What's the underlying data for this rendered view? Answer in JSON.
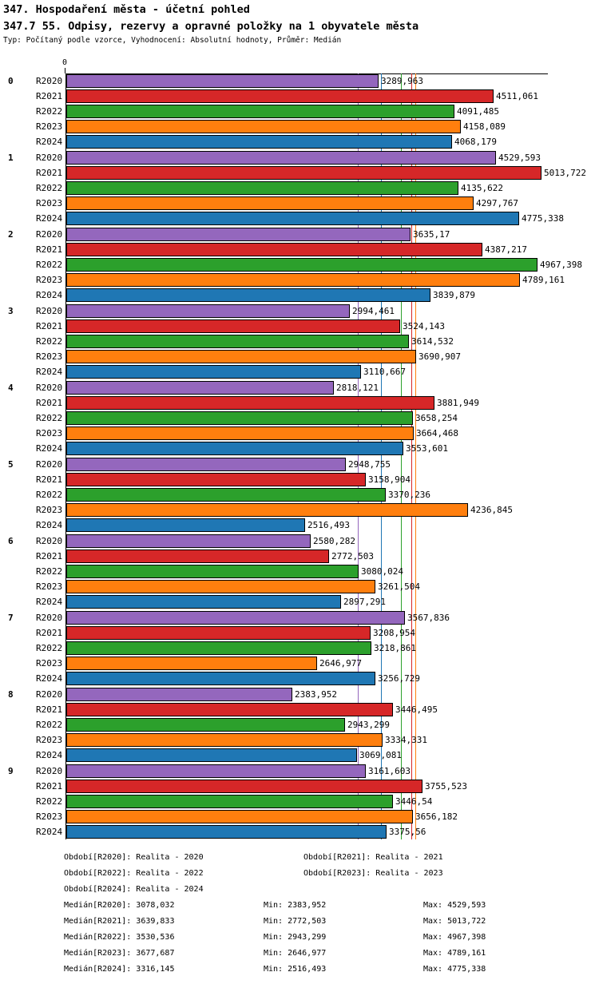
{
  "header": {
    "title1": "347. Hospodaření města - účetní pohled",
    "title2": "347.7 55. Odpisy, rezervy a opravné položky na 1 obyvatele města",
    "meta": "Typ: Počítaný podle vzorce, Vyhodnocení: Absolutní hodnoty, Průměr: Medián"
  },
  "chart_data": {
    "type": "bar",
    "orientation": "horizontal",
    "title": "347.7 55. Odpisy, rezervy a opravné položky na 1 obyvatele města",
    "series": [
      "R2020",
      "R2021",
      "R2022",
      "R2023",
      "R2024"
    ],
    "series_colors": [
      "#9467bd",
      "#d62728",
      "#2ca02c",
      "#ff7f0e",
      "#1f77b4"
    ],
    "categories": [
      "0",
      "1",
      "2",
      "3",
      "4",
      "5",
      "6",
      "7",
      "8",
      "9"
    ],
    "values_display": [
      [
        "3289,963",
        "4511,061",
        "4091,485",
        "4158,089",
        "4068,179"
      ],
      [
        "4529,593",
        "5013,722",
        "4135,622",
        "4297,767",
        "4775,338"
      ],
      [
        "3635,17",
        "4387,217",
        "4967,398",
        "4789,161",
        "3839,879"
      ],
      [
        "2994,461",
        "3524,143",
        "3614,532",
        "3690,907",
        "3110,667"
      ],
      [
        "2818,121",
        "3881,949",
        "3658,254",
        "3664,468",
        "3553,601"
      ],
      [
        "2948,755",
        "3158,904",
        "3370,236",
        "4236,845",
        "2516,493"
      ],
      [
        "2580,282",
        "2772,503",
        "3080,024",
        "3261,504",
        "2897,291"
      ],
      [
        "3567,836",
        "3208,954",
        "3218,861",
        "2646,977",
        "3256,729"
      ],
      [
        "2383,952",
        "3446,495",
        "2943,299",
        "3334,331",
        "3069,081"
      ],
      [
        "3161,603",
        "3755,523",
        "3446,54",
        "3656,182",
        "3375,56"
      ]
    ],
    "medians_display": [
      "3078,032",
      "3639,833",
      "3530,536",
      "3677,687",
      "3316,145"
    ],
    "axis": {
      "origin_label": "0",
      "xlim": [
        0,
        5115
      ],
      "grid": false
    }
  },
  "footer": {
    "period_rows": [
      [
        "Období[R2020]: Realita - 2020",
        "Období[R2021]: Realita - 2021"
      ],
      [
        "Období[R2022]: Realita - 2022",
        "Období[R2023]: Realita - 2023"
      ],
      [
        "Období[R2024]: Realita - 2024",
        ""
      ]
    ],
    "stat_rows": [
      [
        "Medián[R2020]: 3078,032",
        "Min: 2383,952",
        "Max: 4529,593"
      ],
      [
        "Medián[R2021]: 3639,833",
        "Min: 2772,503",
        "Max: 5013,722"
      ],
      [
        "Medián[R2022]: 3530,536",
        "Min: 2943,299",
        "Max: 4967,398"
      ],
      [
        "Medián[R2023]: 3677,687",
        "Min: 2646,977",
        "Max: 4789,161"
      ],
      [
        "Medián[R2024]: 3316,145",
        "Min: 2516,493",
        "Max: 4775,338"
      ]
    ]
  }
}
